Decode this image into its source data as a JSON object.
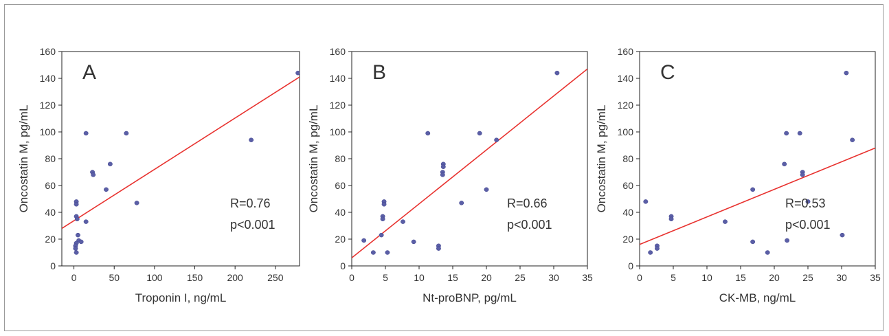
{
  "chart_data": [
    {
      "type": "scatter",
      "panel_label": "A",
      "xlabel": "Troponin I, ng/mL",
      "ylabel": "Oncostatin M, pg/mL",
      "xlim": [
        -15,
        280
      ],
      "ylim": [
        0,
        160
      ],
      "xticks": [
        "0",
        "50",
        "100",
        "150",
        "200",
        "250"
      ],
      "yticks": [
        "0",
        "20",
        "40",
        "60",
        "80",
        "100",
        "120",
        "140",
        "160"
      ],
      "annotation_r": "R=0.76",
      "annotation_p": "p<0.001",
      "fit_line": {
        "x": [
          -15,
          280
        ],
        "y": [
          28,
          141
        ]
      },
      "points": [
        {
          "x": 278,
          "y": 144
        },
        {
          "x": 220,
          "y": 94
        },
        {
          "x": 65,
          "y": 99
        },
        {
          "x": 78,
          "y": 47
        },
        {
          "x": 45,
          "y": 76
        },
        {
          "x": 40,
          "y": 57
        },
        {
          "x": 23,
          "y": 70
        },
        {
          "x": 24,
          "y": 68
        },
        {
          "x": 15,
          "y": 99
        },
        {
          "x": 15,
          "y": 33
        },
        {
          "x": 3,
          "y": 48
        },
        {
          "x": 3,
          "y": 46
        },
        {
          "x": 3,
          "y": 37
        },
        {
          "x": 4,
          "y": 35
        },
        {
          "x": 5,
          "y": 23
        },
        {
          "x": 6,
          "y": 19
        },
        {
          "x": 3,
          "y": 17
        },
        {
          "x": 9,
          "y": 18
        },
        {
          "x": 2,
          "y": 15
        },
        {
          "x": 2,
          "y": 13
        },
        {
          "x": 3,
          "y": 10
        }
      ],
      "colors": {
        "points": "#5b5fa6",
        "fit_line": "#e8322f"
      }
    },
    {
      "type": "scatter",
      "panel_label": "B",
      "xlabel": "Nt-proBNP, pg/mL",
      "ylabel": "Oncostatin M, pg/mL",
      "xlim": [
        0,
        35
      ],
      "ylim": [
        0,
        160
      ],
      "xticks": [
        "0",
        "5",
        "10",
        "15",
        "20",
        "25",
        "30",
        "35"
      ],
      "yticks": [
        "0",
        "20",
        "40",
        "60",
        "80",
        "100",
        "120",
        "140",
        "160"
      ],
      "annotation_r": "R=0.66",
      "annotation_p": "p<0.001",
      "fit_line": {
        "x": [
          0,
          35
        ],
        "y": [
          6,
          147
        ]
      },
      "points": [
        {
          "x": 30.5,
          "y": 144
        },
        {
          "x": 21.5,
          "y": 94
        },
        {
          "x": 19,
          "y": 99
        },
        {
          "x": 11.3,
          "y": 99
        },
        {
          "x": 13.6,
          "y": 76
        },
        {
          "x": 13.6,
          "y": 74
        },
        {
          "x": 13.5,
          "y": 70
        },
        {
          "x": 13.5,
          "y": 68
        },
        {
          "x": 20,
          "y": 57
        },
        {
          "x": 16.3,
          "y": 47
        },
        {
          "x": 4.8,
          "y": 48
        },
        {
          "x": 4.8,
          "y": 46
        },
        {
          "x": 4.6,
          "y": 37
        },
        {
          "x": 4.6,
          "y": 35
        },
        {
          "x": 7.6,
          "y": 33
        },
        {
          "x": 4.4,
          "y": 23
        },
        {
          "x": 1.8,
          "y": 19
        },
        {
          "x": 9.2,
          "y": 18
        },
        {
          "x": 12.9,
          "y": 15
        },
        {
          "x": 12.9,
          "y": 13
        },
        {
          "x": 3.2,
          "y": 10
        },
        {
          "x": 5.3,
          "y": 10
        }
      ],
      "colors": {
        "points": "#5b5fa6",
        "fit_line": "#e8322f"
      }
    },
    {
      "type": "scatter",
      "panel_label": "C",
      "xlabel": "CK-MB, ng/mL",
      "ylabel": "Oncostatin M, pg/mL",
      "xlim": [
        0,
        35
      ],
      "ylim": [
        0,
        160
      ],
      "xticks": [
        "0",
        "5",
        "10",
        "15",
        "20",
        "25",
        "30",
        "35"
      ],
      "yticks": [
        "0",
        "20",
        "40",
        "60",
        "80",
        "100",
        "120",
        "140",
        "160"
      ],
      "annotation_r": "R=0.53",
      "annotation_p": "p<0.001",
      "fit_line": {
        "x": [
          0,
          35
        ],
        "y": [
          16,
          88
        ]
      },
      "points": [
        {
          "x": 30.7,
          "y": 144
        },
        {
          "x": 31.6,
          "y": 94
        },
        {
          "x": 21.8,
          "y": 99
        },
        {
          "x": 23.8,
          "y": 99
        },
        {
          "x": 21.5,
          "y": 76
        },
        {
          "x": 24.2,
          "y": 70
        },
        {
          "x": 24.2,
          "y": 68
        },
        {
          "x": 16.8,
          "y": 57
        },
        {
          "x": 25,
          "y": 48
        },
        {
          "x": 0.9,
          "y": 48
        },
        {
          "x": 4.7,
          "y": 37
        },
        {
          "x": 4.7,
          "y": 35
        },
        {
          "x": 12.7,
          "y": 33
        },
        {
          "x": 30.1,
          "y": 23
        },
        {
          "x": 16.8,
          "y": 18
        },
        {
          "x": 21.9,
          "y": 19
        },
        {
          "x": 2.6,
          "y": 15
        },
        {
          "x": 2.6,
          "y": 13
        },
        {
          "x": 1.6,
          "y": 10
        },
        {
          "x": 19,
          "y": 10
        }
      ],
      "colors": {
        "points": "#5b5fa6",
        "fit_line": "#e8322f"
      }
    }
  ]
}
